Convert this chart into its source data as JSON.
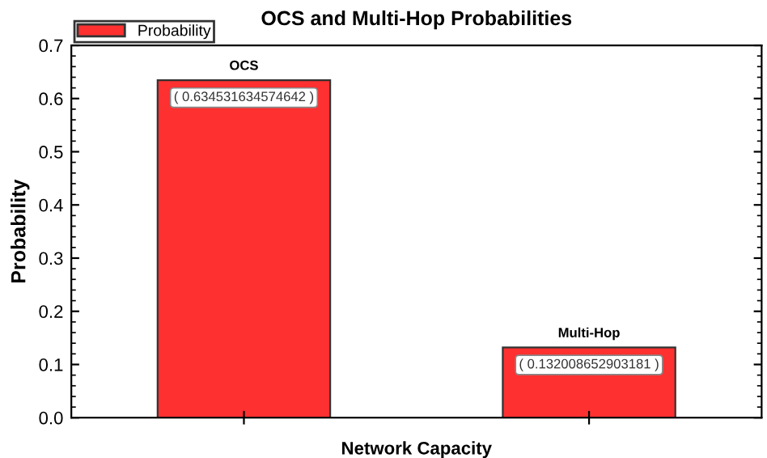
{
  "chart_data": {
    "type": "bar",
    "title": "OCS and Multi-Hop Probabilities",
    "xlabel": "Network Capacity",
    "ylabel": "Probability",
    "categories": [
      "OCS",
      "Multi-Hop"
    ],
    "series": [
      {
        "name": "Probability",
        "color": "#ff3030",
        "values": [
          0.634531634574642,
          0.132008652903181
        ],
        "value_labels": [
          "( 0.634531634574642 )",
          "( 0.132008652903181 )"
        ]
      }
    ],
    "ylim": [
      0,
      0.7
    ],
    "yticks": [
      {
        "value": 0,
        "label": "0.0"
      },
      0.1,
      0.2,
      0.3,
      0.4,
      0.5,
      0.6,
      0.7
    ],
    "grid": false,
    "legend": "top left"
  }
}
